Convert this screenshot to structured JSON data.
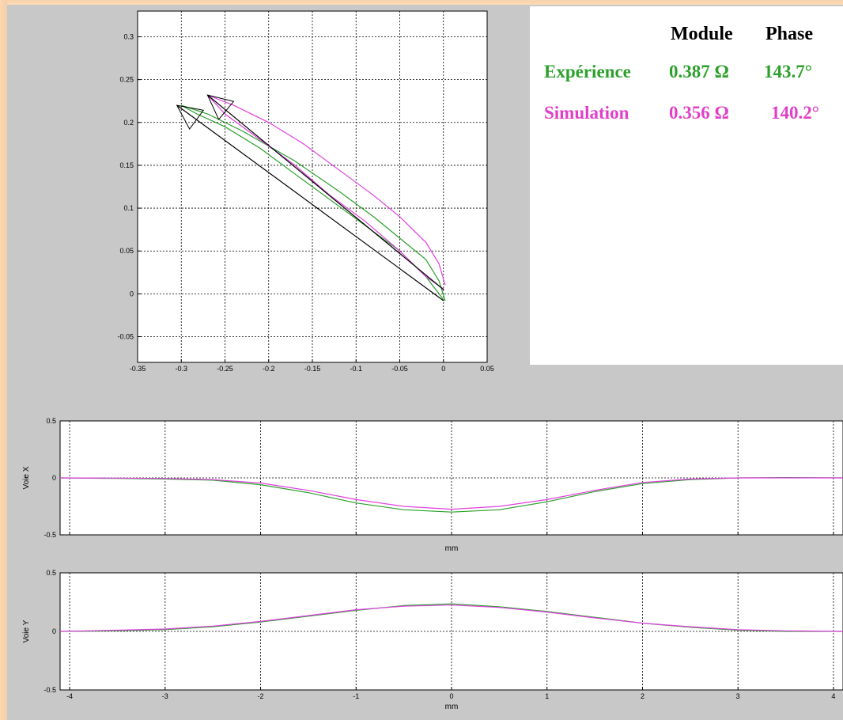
{
  "legend": {
    "headers": {
      "module": "Module",
      "phase": "Phase"
    },
    "experience": {
      "label": "Expérience",
      "module": "0.387 Ω",
      "phase": "143.7°"
    },
    "simulation": {
      "label": "Simulation",
      "module": "0.356 Ω",
      "phase": "140.2°"
    }
  },
  "colors": {
    "experience": "#2ca02c",
    "simulation": "#e040e0",
    "reference": "#000000",
    "grid": "#000000",
    "plot_bg": "#ffffff",
    "figure_bg": "#c8c8c8"
  },
  "chart_data": [
    {
      "type": "line",
      "id": "impedance-plane",
      "xlim": [
        -0.35,
        0.05
      ],
      "ylim": [
        -0.08,
        0.33
      ],
      "xticks": [
        -0.35,
        -0.3,
        -0.25,
        -0.2,
        -0.15,
        -0.1,
        -0.05,
        0,
        0.05
      ],
      "xtick_labels": [
        "-0.35",
        "-0.3",
        "-0.25",
        "-0.2",
        "-0.15",
        "-0.1",
        "-0.05",
        "0",
        "0.05"
      ],
      "yticks": [
        -0.05,
        0,
        0.05,
        0.1,
        0.15,
        0.2,
        0.25,
        0.3
      ],
      "ytick_labels": [
        "-0.05",
        "0",
        "0.05",
        "0.1",
        "0.15",
        "0.2",
        "0.25",
        "0.3"
      ],
      "grid": true,
      "series": [
        {
          "name": "Expérience",
          "color_key": "experience",
          "x": [
            0.002,
            -0.005,
            -0.02,
            -0.05,
            -0.08,
            -0.12,
            -0.17,
            -0.23,
            -0.27,
            -0.3,
            -0.282,
            -0.25,
            -0.21,
            -0.17,
            -0.13,
            -0.09,
            -0.05,
            -0.02,
            0.001
          ],
          "y": [
            -0.008,
            0.015,
            0.04,
            0.065,
            0.09,
            0.12,
            0.155,
            0.19,
            0.21,
            0.22,
            0.21,
            0.195,
            0.17,
            0.14,
            0.11,
            0.08,
            0.05,
            0.02,
            -0.008
          ]
        },
        {
          "name": "Simulation",
          "color_key": "simulation",
          "x": [
            0.002,
            -0.005,
            -0.02,
            -0.05,
            -0.08,
            -0.12,
            -0.16,
            -0.2,
            -0.24,
            -0.26,
            -0.27,
            -0.25,
            -0.21,
            -0.17,
            -0.13,
            -0.09,
            -0.05,
            -0.02,
            0.001
          ],
          "y": [
            0.01,
            0.035,
            0.06,
            0.09,
            0.115,
            0.145,
            0.175,
            0.2,
            0.22,
            0.228,
            0.232,
            0.21,
            0.18,
            0.15,
            0.115,
            0.085,
            0.05,
            0.02,
            0.005
          ]
        },
        {
          "name": "Expérience vector",
          "color_key": "reference",
          "x": [
            0.0,
            -0.305
          ],
          "y": [
            -0.008,
            0.22
          ]
        },
        {
          "name": "Simulation vector",
          "color_key": "reference",
          "x": [
            0.0,
            -0.27
          ],
          "y": [
            0.005,
            0.232
          ]
        }
      ]
    },
    {
      "type": "line",
      "id": "voie-x",
      "ylabel": "Voie X",
      "xlabel": "mm",
      "xlim": [
        -4.1,
        4.1
      ],
      "ylim": [
        -0.5,
        0.5
      ],
      "xticks": [
        -4,
        -3,
        -2,
        -1,
        0,
        1,
        2,
        3,
        4
      ],
      "yticks": [
        -0.5,
        0,
        0.5
      ],
      "ytick_labels": [
        "-0.5",
        "0",
        "0.5"
      ],
      "grid": true,
      "series": [
        {
          "name": "Expérience",
          "color_key": "experience",
          "x": [
            -4.1,
            -3.5,
            -3.0,
            -2.5,
            -2.0,
            -1.5,
            -1.0,
            -0.5,
            0,
            0.5,
            1.0,
            1.5,
            2.0,
            2.5,
            3.0,
            3.5,
            4.1
          ],
          "y": [
            0,
            -0.005,
            -0.01,
            -0.02,
            -0.06,
            -0.13,
            -0.22,
            -0.28,
            -0.3,
            -0.28,
            -0.21,
            -0.12,
            -0.05,
            -0.015,
            0,
            0.003,
            0
          ]
        },
        {
          "name": "Simulation",
          "color_key": "simulation",
          "x": [
            -4.1,
            -3.5,
            -3.0,
            -2.5,
            -2.0,
            -1.5,
            -1.0,
            -0.5,
            0,
            0.5,
            1.0,
            1.5,
            2.0,
            2.5,
            3.0,
            3.5,
            4.1
          ],
          "y": [
            0,
            -0.002,
            -0.005,
            -0.015,
            -0.045,
            -0.11,
            -0.19,
            -0.25,
            -0.275,
            -0.25,
            -0.19,
            -0.11,
            -0.04,
            -0.01,
            0,
            0,
            0
          ]
        }
      ]
    },
    {
      "type": "line",
      "id": "voie-y",
      "ylabel": "Voie Y",
      "xlabel": "mm",
      "xlim": [
        -4.1,
        4.1
      ],
      "ylim": [
        -0.5,
        0.5
      ],
      "xticks": [
        -4,
        -3,
        -2,
        -1,
        0,
        1,
        2,
        3,
        4
      ],
      "xtick_labels": [
        "-4",
        "-3",
        "-2",
        "-1",
        "0",
        "1",
        "2",
        "3",
        "4"
      ],
      "yticks": [
        -0.5,
        0,
        0.5
      ],
      "ytick_labels": [
        "-0.5",
        "0",
        "0.5"
      ],
      "grid": true,
      "series": [
        {
          "name": "Expérience",
          "color_key": "experience",
          "x": [
            -4.1,
            -3.5,
            -3.0,
            -2.5,
            -2.0,
            -1.5,
            -1.0,
            -0.5,
            0,
            0.5,
            1.0,
            1.5,
            2.0,
            2.5,
            3.0,
            3.5,
            4.1
          ],
          "y": [
            0,
            0.005,
            0.015,
            0.04,
            0.08,
            0.13,
            0.18,
            0.22,
            0.235,
            0.21,
            0.17,
            0.12,
            0.07,
            0.035,
            0.01,
            0,
            0
          ]
        },
        {
          "name": "Simulation",
          "color_key": "simulation",
          "x": [
            -4.1,
            -3.5,
            -3.0,
            -2.5,
            -2.0,
            -1.5,
            -1.0,
            -0.5,
            0,
            0.5,
            1.0,
            1.5,
            2.0,
            2.5,
            3.0,
            3.5,
            4.1
          ],
          "y": [
            0,
            0.01,
            0.02,
            0.045,
            0.085,
            0.135,
            0.185,
            0.215,
            0.225,
            0.205,
            0.165,
            0.115,
            0.07,
            0.04,
            0.015,
            0.005,
            0
          ]
        }
      ]
    }
  ]
}
